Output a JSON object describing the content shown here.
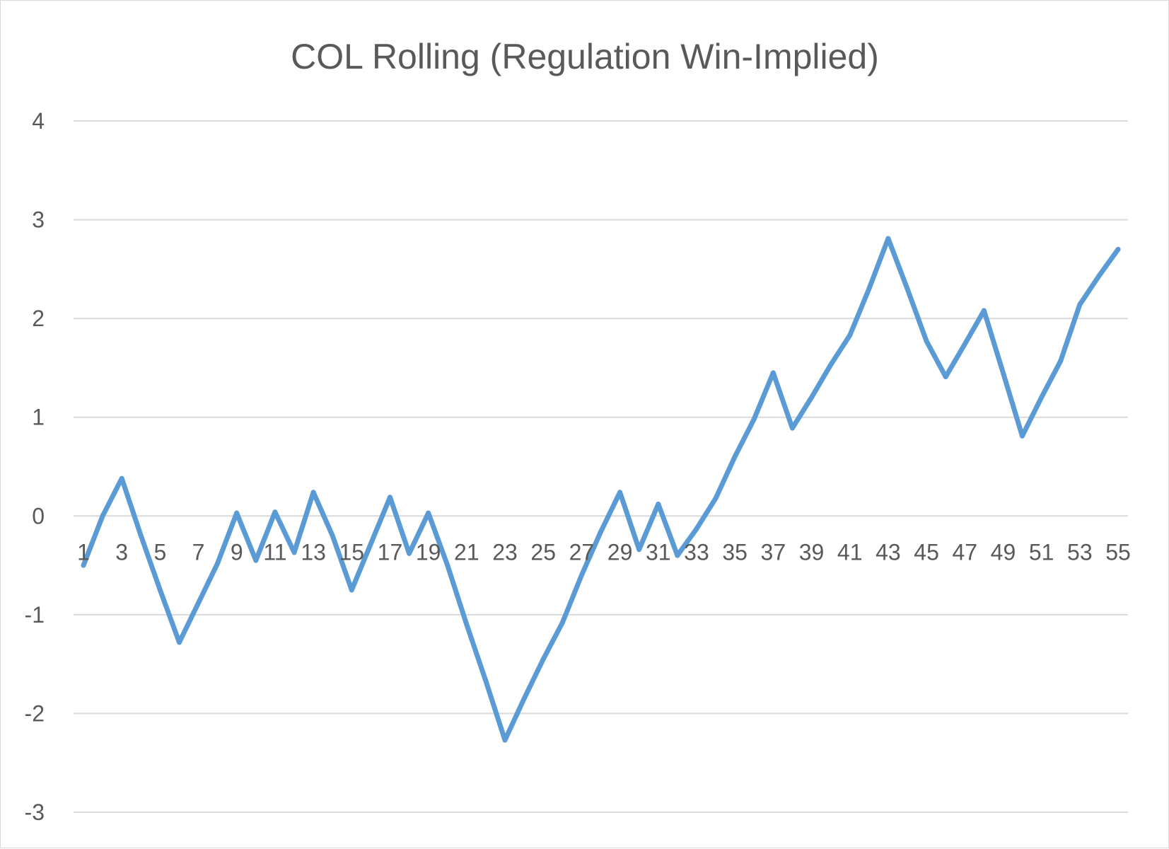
{
  "chart_data": {
    "type": "line",
    "title": "COL Rolling (Regulation Win-Implied)",
    "xlabel": "",
    "ylabel": "",
    "ylim": [
      -3,
      4
    ],
    "yticks": [
      -3,
      -2,
      -1,
      0,
      1,
      2,
      3,
      4
    ],
    "x": [
      1,
      2,
      3,
      4,
      5,
      6,
      7,
      8,
      9,
      10,
      11,
      12,
      13,
      14,
      15,
      16,
      17,
      18,
      19,
      20,
      21,
      22,
      23,
      24,
      25,
      26,
      27,
      28,
      29,
      30,
      31,
      32,
      33,
      34,
      35,
      36,
      37,
      38,
      39,
      40,
      41,
      42,
      43,
      44,
      45,
      46,
      47,
      48,
      49,
      50,
      51,
      52,
      53,
      54,
      55
    ],
    "xtick_labels": [
      "1",
      "3",
      "5",
      "7",
      "9",
      "11",
      "13",
      "15",
      "17",
      "19",
      "21",
      "23",
      "25",
      "27",
      "29",
      "31",
      "33",
      "35",
      "37",
      "39",
      "41",
      "43",
      "45",
      "47",
      "49",
      "51",
      "53",
      "55"
    ],
    "series": [
      {
        "color": "#5b9bd5",
        "values": [
          -0.5,
          0,
          0.38,
          -0.2,
          -0.75,
          -1.28,
          -0.88,
          -0.48,
          0.03,
          -0.45,
          0.04,
          -0.37,
          0.24,
          -0.2,
          -0.75,
          -0.28,
          0.19,
          -0.38,
          0.03,
          -0.5,
          -1.1,
          -1.67,
          -2.27,
          -1.85,
          -1.45,
          -1.08,
          -0.6,
          -0.16,
          0.24,
          -0.34,
          0.12,
          -0.4,
          -0.13,
          0.18,
          0.6,
          0.98,
          1.45,
          0.89,
          1.2,
          1.53,
          1.83,
          2.3,
          2.81,
          2.3,
          1.77,
          1.41,
          1.74,
          2.08,
          1.45,
          0.81,
          1.2,
          1.57,
          2.14,
          2.43,
          2.7
        ]
      }
    ],
    "grid": true,
    "legend": "none"
  }
}
